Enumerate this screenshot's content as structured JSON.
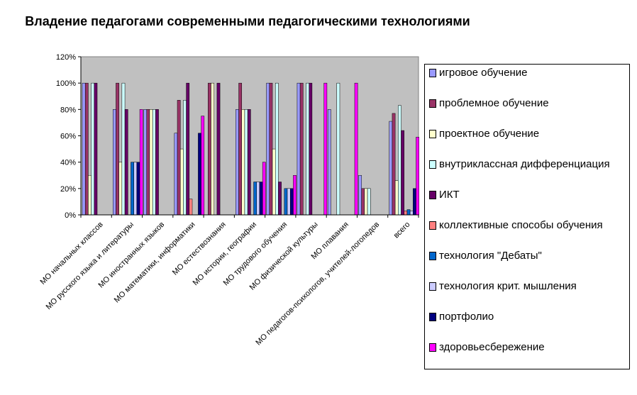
{
  "chart_data": {
    "type": "bar",
    "title": "Владение педагогами современными педагогическими технологиями",
    "xlabel": "",
    "ylabel": "",
    "ylim": [
      0,
      1.2
    ],
    "yticks": [
      "0%",
      "20%",
      "40%",
      "60%",
      "80%",
      "100%",
      "120%"
    ],
    "grid": false,
    "legend_position": "right",
    "categories": [
      "МО начальных классов",
      "МО русского языка и литературы",
      "МО иностранных языков",
      "МО математики, информатики",
      "МО естествознания",
      "МО истории, географии",
      "МО трудового обучения",
      "МО физической культуры",
      "МО плавания",
      "МО педагогов-психологов, учителей-логопедов",
      "всего"
    ],
    "series": [
      {
        "name": "игровое обучение",
        "color": "#9999FF",
        "values": [
          1.0,
          0.8,
          0.8,
          0.62,
          0,
          0.8,
          1.0,
          1.0,
          0.8,
          0.3,
          0.71
        ]
      },
      {
        "name": "проблемное  обучение",
        "color": "#993366",
        "values": [
          1.0,
          1.0,
          0.8,
          0.87,
          1.0,
          1.0,
          1.0,
          1.0,
          0,
          0.2,
          0.77
        ]
      },
      {
        "name": "проектное обучение",
        "color": "#FFFFCC",
        "values": [
          0.3,
          0.4,
          0.8,
          0.5,
          1.0,
          0.8,
          0.5,
          0,
          0,
          0.2,
          0.26
        ]
      },
      {
        "name": "внутриклассная дифференциация",
        "color": "#CCFFFF",
        "values": [
          1.0,
          1.0,
          0.8,
          0.87,
          0,
          0.8,
          1.0,
          1.0,
          1.0,
          0.2,
          0.83
        ]
      },
      {
        "name": "ИКТ",
        "color": "#660066",
        "values": [
          1.0,
          0.8,
          0.8,
          1.0,
          1.0,
          0.8,
          0.25,
          1.0,
          0,
          0,
          0.64
        ]
      },
      {
        "name": "коллективные способы обучения",
        "color": "#FF8080",
        "values": [
          0,
          0,
          0,
          0.12,
          0,
          0,
          0,
          0,
          0,
          0,
          0.03
        ]
      },
      {
        "name": "технология \"Дебаты\"",
        "color": "#0066CC",
        "values": [
          0,
          0.4,
          0,
          0,
          0,
          0.25,
          0.2,
          0,
          0,
          0,
          0.04
        ]
      },
      {
        "name": "технология крит. мышления",
        "color": "#CCCCFF",
        "values": [
          0,
          0.4,
          0,
          0,
          0,
          0.25,
          0.2,
          0,
          0,
          0,
          0.03
        ]
      },
      {
        "name": "портфолио",
        "color": "#000080",
        "values": [
          0,
          0.4,
          0,
          0.62,
          0,
          0.25,
          0.2,
          0,
          0,
          0,
          0.2
        ]
      },
      {
        "name": "здоровьесбережение",
        "color": "#FF00FF",
        "values": [
          0,
          0.8,
          0,
          0.75,
          0,
          0.4,
          0.3,
          1.0,
          1.0,
          0,
          0.59
        ]
      }
    ]
  }
}
